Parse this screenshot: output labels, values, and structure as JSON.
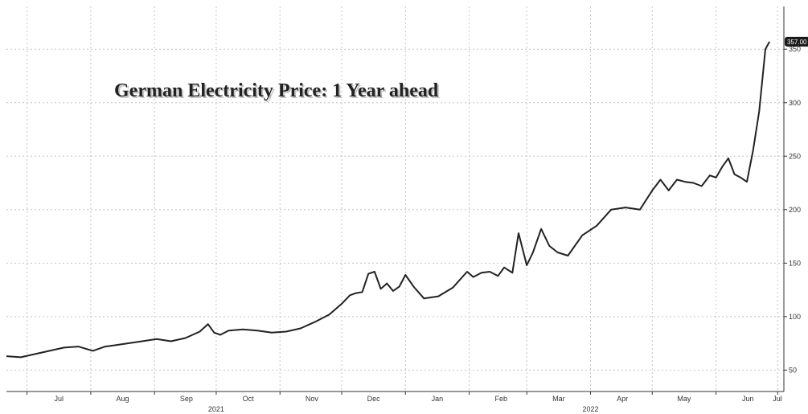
{
  "chart_data": {
    "type": "line",
    "title": "German Electricity Price: 1 Year ahead",
    "xlabel": "",
    "ylabel": "",
    "x_range": [
      "2021-06-21",
      "2022-07-04"
    ],
    "ylim": [
      30,
      390
    ],
    "y_ticks": [
      50,
      100,
      150,
      200,
      250,
      300,
      350
    ],
    "x_ticks": [
      {
        "date": "2021-07-01",
        "label": "Jul"
      },
      {
        "date": "2021-08-01",
        "label": "Aug"
      },
      {
        "date": "2021-09-01",
        "label": "Sep"
      },
      {
        "date": "2021-10-01",
        "label": "Oct"
      },
      {
        "date": "2021-11-01",
        "label": "Nov"
      },
      {
        "date": "2021-12-01",
        "label": "Dec"
      },
      {
        "date": "2022-01-01",
        "label": "Jan"
      },
      {
        "date": "2022-02-01",
        "label": "Feb"
      },
      {
        "date": "2022-03-01",
        "label": "Mar"
      },
      {
        "date": "2022-04-01",
        "label": "Apr"
      },
      {
        "date": "2022-05-01",
        "label": "May"
      },
      {
        "date": "2022-06-01",
        "label": "Jun"
      },
      {
        "date": "2022-07-01",
        "label": "Jul"
      }
    ],
    "year_labels": [
      {
        "date": "2021-10-01",
        "label": "2021"
      },
      {
        "date": "2022-04-01",
        "label": "2022"
      }
    ],
    "grid": true,
    "y_axis_position": "right",
    "last_value_label": "357.00",
    "series": [
      {
        "x": [
          "2021-06-21",
          "2021-06-28",
          "2021-07-05",
          "2021-07-12",
          "2021-07-19",
          "2021-07-26",
          "2021-08-02",
          "2021-08-05",
          "2021-08-08",
          "2021-08-12",
          "2021-08-19",
          "2021-08-26",
          "2021-09-02",
          "2021-09-09",
          "2021-09-16",
          "2021-09-23",
          "2021-09-27",
          "2021-09-30",
          "2021-10-03",
          "2021-10-07",
          "2021-10-14",
          "2021-10-21",
          "2021-10-28",
          "2021-11-04",
          "2021-11-11",
          "2021-11-18",
          "2021-11-25",
          "2021-12-01",
          "2021-12-05",
          "2021-12-08",
          "2021-12-11",
          "2021-12-14",
          "2021-12-17",
          "2021-12-20",
          "2021-12-23",
          "2021-12-26",
          "2021-12-29",
          "2022-01-01",
          "2022-01-05",
          "2022-01-10",
          "2022-01-17",
          "2022-01-24",
          "2022-01-31",
          "2022-02-03",
          "2022-02-07",
          "2022-02-11",
          "2022-02-15",
          "2022-02-18",
          "2022-02-22",
          "2022-02-25",
          "2022-03-01",
          "2022-03-04",
          "2022-03-08",
          "2022-03-12",
          "2022-03-16",
          "2022-03-21",
          "2022-03-28",
          "2022-04-04",
          "2022-04-11",
          "2022-04-18",
          "2022-04-25",
          "2022-05-01",
          "2022-05-05",
          "2022-05-09",
          "2022-05-13",
          "2022-05-17",
          "2022-05-21",
          "2022-05-25",
          "2022-05-29",
          "2022-06-01",
          "2022-06-04",
          "2022-06-07",
          "2022-06-10",
          "2022-06-13",
          "2022-06-16",
          "2022-06-19",
          "2022-06-22",
          "2022-06-25",
          "2022-06-27"
        ],
        "values": [
          63,
          62,
          65,
          68,
          71,
          72,
          68,
          70,
          72,
          73,
          75,
          77,
          79,
          77,
          80,
          86,
          93,
          85,
          83,
          87,
          88,
          87,
          85,
          86,
          89,
          95,
          102,
          112,
          120,
          122,
          123,
          140,
          142,
          126,
          131,
          124,
          128,
          139,
          128,
          117,
          119,
          127,
          142,
          137,
          141,
          142,
          138,
          146,
          141,
          178,
          148,
          160,
          182,
          166,
          160,
          157,
          176,
          185,
          200,
          202,
          200,
          218,
          228,
          218,
          228,
          226,
          225,
          222,
          232,
          230,
          240,
          248,
          233,
          230,
          226,
          255,
          292,
          350,
          357
        ]
      }
    ]
  }
}
